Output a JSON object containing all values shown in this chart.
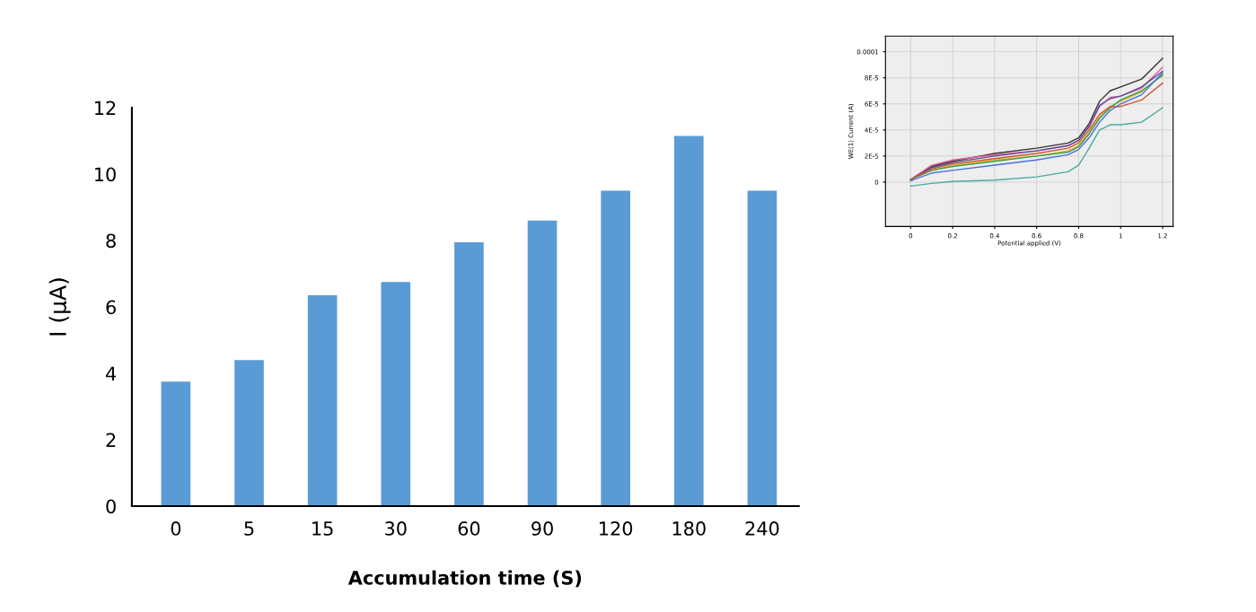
{
  "chart_data": [
    {
      "type": "bar",
      "xlabel": "Accumulation time (S)",
      "ylabel": "I (μA)",
      "categories": [
        "0",
        "5",
        "15",
        "30",
        "60",
        "90",
        "120",
        "180",
        "240"
      ],
      "series": [
        {
          "color": "#5b9bd5",
          "values": [
            3.75,
            4.4,
            6.35,
            6.75,
            7.95,
            8.6,
            9.5,
            11.15,
            9.5
          ]
        }
      ],
      "ylim": [
        0,
        12
      ],
      "yticks": [
        0,
        2,
        4,
        6,
        8,
        10,
        12
      ],
      "grid": false
    },
    {
      "type": "line",
      "xlabel": "Potential applied (V)",
      "ylabel": "WE(1) Current (A)",
      "xlim": [
        -0.12,
        1.25
      ],
      "xticks": [
        0,
        0.2,
        0.4,
        0.6,
        0.8,
        1,
        1.2
      ],
      "ylim": [
        -3.4e-05,
        0.000112
      ],
      "yticks": [
        {
          "value": 0,
          "label": "0"
        },
        {
          "value": 2e-05,
          "label": "2E-5"
        },
        {
          "value": 4e-05,
          "label": "4E-5"
        },
        {
          "value": 6e-05,
          "label": "6E-5"
        },
        {
          "value": 8e-05,
          "label": "8E-5"
        },
        {
          "value": 0.0001,
          "label": "0.0001"
        }
      ],
      "grid": true,
      "x": [
        0,
        0.1,
        0.2,
        0.4,
        0.6,
        0.75,
        0.8,
        0.85,
        0.9,
        0.95,
        1.0,
        1.1,
        1.2
      ],
      "series": [
        {
          "color": "#333333",
          "values": [
            2e-06,
            1.2e-05,
            1.6e-05,
            2.2e-05,
            2.6e-05,
            3e-05,
            3.4e-05,
            4.5e-05,
            6.2e-05,
            7e-05,
            7.3e-05,
            7.9e-05,
            9.5e-05
          ]
        },
        {
          "color": "#e0609a",
          "values": [
            2e-06,
            1.3e-05,
            1.7e-05,
            2.1e-05,
            2.4e-05,
            2.8e-05,
            3.2e-05,
            4.2e-05,
            5.8e-05,
            6.5e-05,
            6.6e-05,
            7.2e-05,
            8.8e-05
          ]
        },
        {
          "color": "#5a4a9a",
          "values": [
            2e-06,
            1.1e-05,
            1.5e-05,
            2e-05,
            2.4e-05,
            2.8e-05,
            3.2e-05,
            4.3e-05,
            5.9e-05,
            6.4e-05,
            6.6e-05,
            7.3e-05,
            8.5e-05
          ]
        },
        {
          "color": "#d9b830",
          "values": [
            2e-06,
            9e-06,
            1.3e-05,
            1.7e-05,
            2e-05,
            2.4e-05,
            2.8e-05,
            3.8e-05,
            5e-05,
            5.8e-05,
            6.2e-05,
            6.9e-05,
            8.3e-05
          ]
        },
        {
          "color": "#3aa04a",
          "values": [
            2e-06,
            9e-06,
            1.2e-05,
            1.6e-05,
            2e-05,
            2.3e-05,
            2.7e-05,
            3.7e-05,
            4.9e-05,
            5.7e-05,
            6.3e-05,
            7e-05,
            8.2e-05
          ]
        },
        {
          "color": "#d2552a",
          "values": [
            2e-06,
            1e-05,
            1.4e-05,
            1.8e-05,
            2.2e-05,
            2.6e-05,
            3e-05,
            4e-05,
            5.2e-05,
            5.8e-05,
            5.8e-05,
            6.3e-05,
            7.6e-05
          ]
        },
        {
          "color": "#4a6ee0",
          "values": [
            1e-06,
            7e-06,
            9e-06,
            1.3e-05,
            1.7e-05,
            2.1e-05,
            2.5e-05,
            3.4e-05,
            4.6e-05,
            5.5e-05,
            6e-05,
            6.7e-05,
            8.4e-05
          ]
        },
        {
          "color": "#4aaaa0",
          "values": [
            -3e-06,
            -1e-06,
            5e-07,
            1.5e-06,
            4e-06,
            8e-06,
            1.3e-05,
            2.6e-05,
            4e-05,
            4.4e-05,
            4.4e-05,
            4.6e-05,
            5.7e-05
          ]
        }
      ]
    }
  ]
}
